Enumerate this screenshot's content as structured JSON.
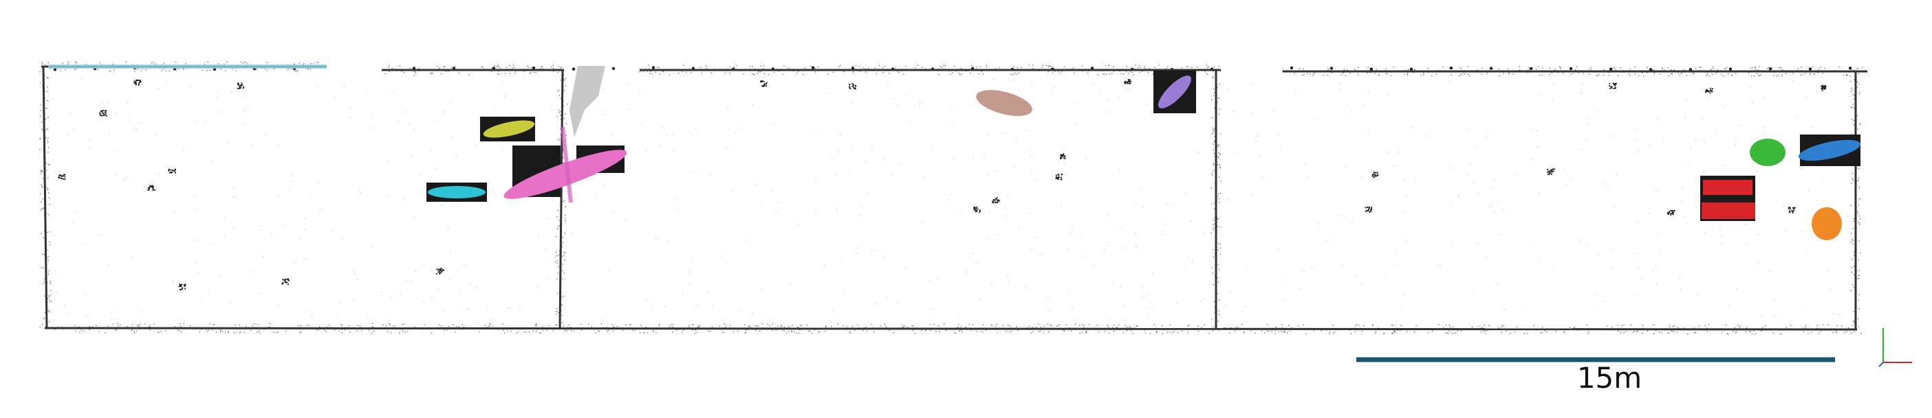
{
  "scale_bar": {
    "label": "15m",
    "color": "#17566e"
  },
  "object_colors": {
    "yellow": "#c9cc3a",
    "cyan": "#2ec4d6",
    "pink": "#e871c8",
    "magenta": "#d65fbf",
    "brown": "#b98a78",
    "purple": "#9a7bd6",
    "green": "#3ab83a",
    "blue": "#2f7fd1",
    "red": "#d9252a",
    "orange": "#f08a24",
    "light_blue": "#8fd3ea"
  },
  "axis_colors": {
    "x": "#e02020",
    "y": "#20c020",
    "z": "#2060e0"
  }
}
